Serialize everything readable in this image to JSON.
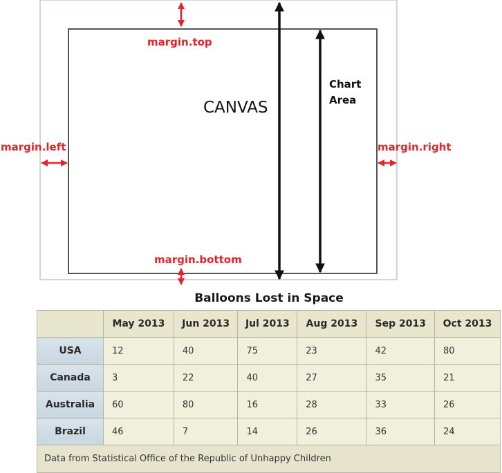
{
  "diagram": {
    "canvas_label": "CANVAS",
    "chart_area_label_line1": "Chart",
    "chart_area_label_line2": "Area",
    "margins": {
      "top": "margin.top",
      "left": "margin.left",
      "right": "margin.right",
      "bottom": "margin.bottom"
    },
    "colors": {
      "margin": "#e0262b",
      "canvas_border": "#444444",
      "outer_border": "#cfd6d6",
      "arrow": "#111111"
    }
  },
  "table": {
    "title": "Balloons Lost in Space",
    "columns": [
      "May 2013",
      "Jun 2013",
      "Jul 2013",
      "Aug 2013",
      "Sep 2013",
      "Oct 2013"
    ],
    "rows": [
      {
        "label": "USA",
        "values": [
          "12",
          "40",
          "75",
          "23",
          "42",
          "80"
        ]
      },
      {
        "label": "Canada",
        "values": [
          "3",
          "22",
          "40",
          "27",
          "35",
          "21"
        ]
      },
      {
        "label": "Australia",
        "values": [
          "60",
          "80",
          "16",
          "28",
          "33",
          "26"
        ]
      },
      {
        "label": "Brazil",
        "values": [
          "46",
          "7",
          "14",
          "26",
          "36",
          "24"
        ]
      }
    ],
    "footer": "Data from Statistical Office of the Republic of Unhappy Children"
  }
}
